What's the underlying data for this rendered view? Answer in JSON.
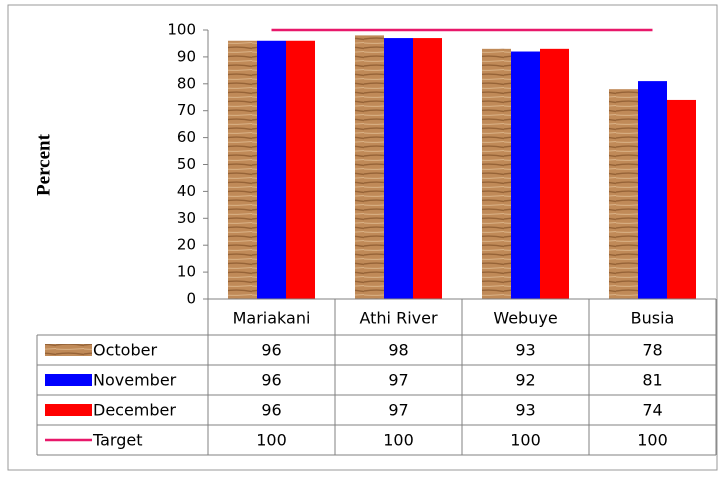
{
  "chart_data": {
    "type": "bar",
    "y_label": "Percent",
    "categories": [
      "Mariakani",
      "Athi River",
      "Webuye",
      "Busia"
    ],
    "series": [
      {
        "name": "October",
        "color": "#c08a58",
        "values": [
          96,
          98,
          93,
          78
        ]
      },
      {
        "name": "November",
        "color": "#0000ff",
        "values": [
          96,
          97,
          92,
          81
        ]
      },
      {
        "name": "December",
        "color": "#ff0000",
        "values": [
          96,
          97,
          93,
          74
        ]
      },
      {
        "name": "Target",
        "color": "#e8186a",
        "type": "line",
        "values": [
          100,
          100,
          100,
          100
        ]
      }
    ],
    "ylim": [
      0,
      100
    ],
    "yticks": [
      0,
      10,
      20,
      30,
      40,
      50,
      60,
      70,
      80,
      90,
      100
    ],
    "grid": false
  }
}
